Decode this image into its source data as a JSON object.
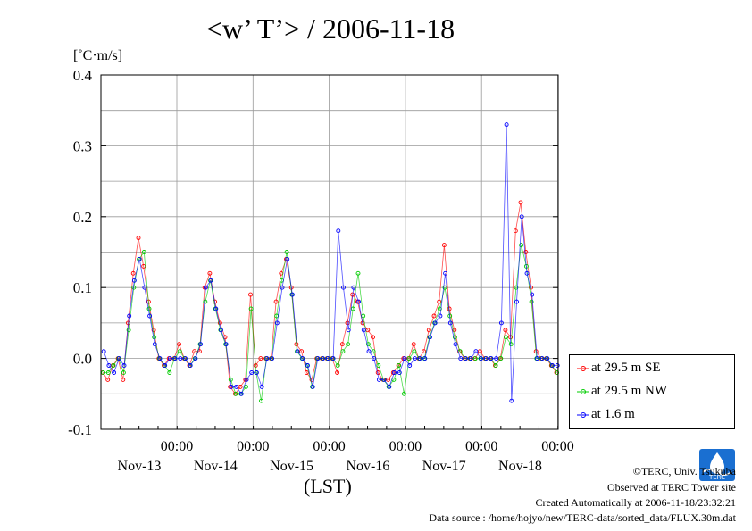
{
  "chart_data": {
    "type": "line",
    "title": "<w’ T’> / 2006-11-18",
    "ylabel": "[˚C·m/s]",
    "xlabel": "(LST)",
    "ylim": [
      -0.1,
      0.4
    ],
    "yticks": [
      "0.4",
      "0.3",
      "0.2",
      "0.1",
      "0.0",
      "-0.1"
    ],
    "xticks": [
      {
        "time": "00:00",
        "date": "Nov-13"
      },
      {
        "time": "00:00",
        "date": "Nov-14"
      },
      {
        "time": "00:00",
        "date": "Nov-15"
      },
      {
        "time": "00:00",
        "date": "Nov-16"
      },
      {
        "time": "00:00",
        "date": "Nov-17"
      },
      {
        "time": "00:00",
        "date": "Nov-18"
      }
    ],
    "grid": true,
    "legend_position": "bottom-right",
    "series": [
      {
        "name": "at 29.5 m SE",
        "color": "#ff0000",
        "values": [
          -0.02,
          -0.03,
          -0.01,
          0.0,
          -0.03,
          0.05,
          0.12,
          0.17,
          0.13,
          0.08,
          0.04,
          0.0,
          -0.01,
          0.0,
          0.0,
          0.02,
          0.0,
          -0.01,
          0.01,
          0.01,
          0.1,
          0.12,
          0.08,
          0.05,
          0.03,
          -0.04,
          -0.05,
          -0.04,
          -0.03,
          0.09,
          -0.01,
          0.0,
          0.0,
          0.0,
          0.08,
          0.12,
          0.14,
          0.1,
          0.02,
          0.01,
          -0.02,
          -0.03,
          0.0,
          0.0,
          0.0,
          0.0,
          -0.02,
          0.02,
          0.05,
          0.09,
          0.08,
          0.05,
          0.04,
          0.03,
          -0.02,
          -0.03,
          -0.03,
          -0.02,
          -0.01,
          0.0,
          0.0,
          0.02,
          0.0,
          0.01,
          0.04,
          0.06,
          0.08,
          0.16,
          0.07,
          0.04,
          0.01,
          0.0,
          0.0,
          0.0,
          0.01,
          0.0,
          0.0,
          -0.01,
          0.0,
          0.04,
          0.03,
          0.18,
          0.22,
          0.15,
          0.1,
          0.01,
          0.0,
          0.0,
          -0.01,
          -0.02
        ]
      },
      {
        "name": "at 29.5 m NW",
        "color": "#00cc00",
        "values": [
          -0.02,
          -0.02,
          -0.01,
          0.0,
          -0.02,
          0.04,
          0.1,
          0.14,
          0.15,
          0.07,
          0.03,
          0.0,
          -0.01,
          -0.02,
          0.0,
          0.01,
          0.0,
          -0.01,
          0.0,
          0.02,
          0.08,
          0.11,
          0.07,
          0.04,
          0.02,
          -0.03,
          -0.05,
          -0.05,
          -0.04,
          0.07,
          -0.02,
          -0.06,
          0.0,
          0.0,
          0.06,
          0.11,
          0.15,
          0.09,
          0.01,
          0.0,
          -0.01,
          -0.04,
          0.0,
          0.0,
          0.0,
          0.0,
          -0.01,
          0.01,
          0.02,
          0.07,
          0.12,
          0.06,
          0.02,
          0.01,
          -0.01,
          -0.03,
          -0.04,
          -0.03,
          -0.01,
          -0.05,
          0.0,
          0.01,
          0.0,
          0.0,
          0.03,
          0.05,
          0.07,
          0.1,
          0.06,
          0.03,
          0.01,
          0.0,
          0.0,
          0.0,
          0.0,
          0.0,
          0.0,
          -0.01,
          0.0,
          0.03,
          0.02,
          0.1,
          0.16,
          0.13,
          0.08,
          0.0,
          0.0,
          0.0,
          -0.01,
          -0.02
        ]
      },
      {
        "name": "at 1.6 m",
        "color": "#0000ff",
        "values": [
          0.01,
          -0.01,
          -0.02,
          0.0,
          -0.01,
          0.06,
          0.11,
          0.14,
          0.1,
          0.06,
          0.02,
          0.0,
          -0.01,
          0.0,
          0.0,
          0.0,
          0.0,
          -0.01,
          0.0,
          0.02,
          0.1,
          0.11,
          0.07,
          0.04,
          0.02,
          -0.04,
          -0.04,
          -0.05,
          -0.03,
          -0.02,
          -0.02,
          -0.04,
          0.0,
          0.0,
          0.05,
          0.1,
          0.14,
          0.09,
          0.01,
          0.0,
          -0.01,
          -0.04,
          0.0,
          0.0,
          0.0,
          0.0,
          0.18,
          0.1,
          0.04,
          0.1,
          0.08,
          0.04,
          0.01,
          0.0,
          -0.03,
          -0.03,
          -0.04,
          -0.02,
          -0.02,
          0.0,
          -0.01,
          0.0,
          0.0,
          0.0,
          0.03,
          0.05,
          0.06,
          0.12,
          0.05,
          0.02,
          0.0,
          0.0,
          0.0,
          0.01,
          0.0,
          0.0,
          0.0,
          0.0,
          0.05,
          0.33,
          -0.06,
          0.08,
          0.2,
          0.12,
          0.09,
          0.0,
          0.0,
          0.0,
          -0.01,
          -0.01
        ]
      }
    ]
  },
  "footer": {
    "copyright": "©TERC, Univ. Tsukuba",
    "observed": "Observed at TERC Tower site",
    "created": "Created Automatically at 2006-11-18/23:32:21",
    "source": "Data source : /home/hojyo/new/TERC-data/sorted_data/FLUX.30m.dat"
  },
  "logo": {
    "text": "TERC",
    "color": "#1a6fd1"
  }
}
